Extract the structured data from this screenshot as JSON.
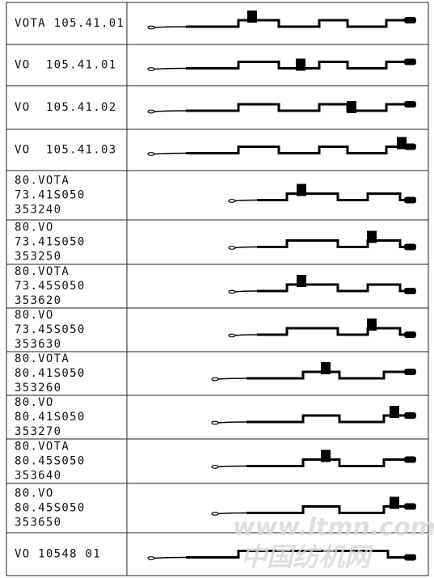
{
  "table": {
    "rows": [
      [
        "VOTA 105.41.01"
      ],
      [
        "VO  105.41.01"
      ],
      [
        "VO  105.41.02"
      ],
      [
        "VO  105.41.03"
      ],
      [
        "80.VOTA",
        "73.41S050",
        "353240"
      ],
      [
        "80.VO",
        "73.41S050",
        "353250"
      ],
      [
        "80.VOTA",
        "73.45S050",
        "353620"
      ],
      [
        "80.VO",
        "73.45S050",
        "353630"
      ],
      [
        "80.VOTA",
        "80.41S050",
        "353260"
      ],
      [
        "80.VO",
        "80.41S050",
        "353270"
      ],
      [
        "80.VOTA",
        "80.45S050",
        "353640"
      ],
      [
        "80.VO",
        "80.45S050",
        "353650"
      ],
      [
        "VO 10548 01"
      ]
    ]
  },
  "watermark": {
    "url": "www.ltmn.com",
    "site": "中国纺机网"
  }
}
